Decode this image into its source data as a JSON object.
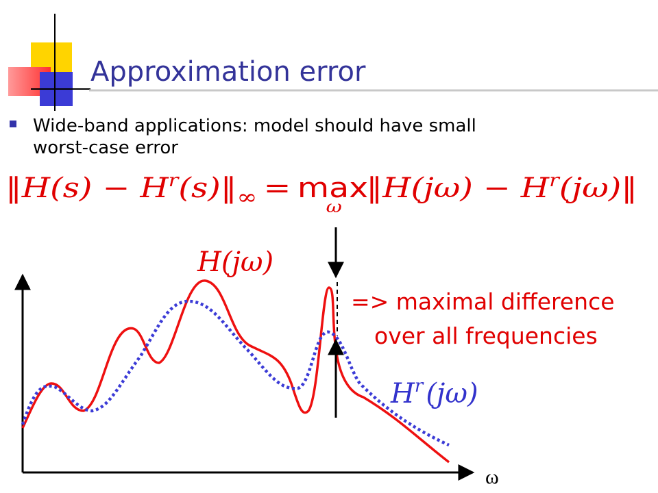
{
  "slide": {
    "title": "Approximation error",
    "bullet_lines": [
      "Wide-band applications: model should have small",
      "worst-case error"
    ],
    "formula": {
      "left_a": "‖H(s) − H",
      "left_sup": "r",
      "left_b": "(s)‖",
      "left_sub": "∞",
      "equals": "=",
      "max": "max",
      "max_sub": "ω",
      "right_a": "‖H(jω) − H",
      "right_sup": "r",
      "right_b": "(jω)‖"
    },
    "h_label": "H(jω)",
    "hr_label": {
      "base": "H",
      "sup": "r",
      "rest": "(jω)"
    },
    "annotation_lines": [
      "=> maximal difference",
      "over all frequencies"
    ],
    "x_axis_label": "ω"
  }
}
